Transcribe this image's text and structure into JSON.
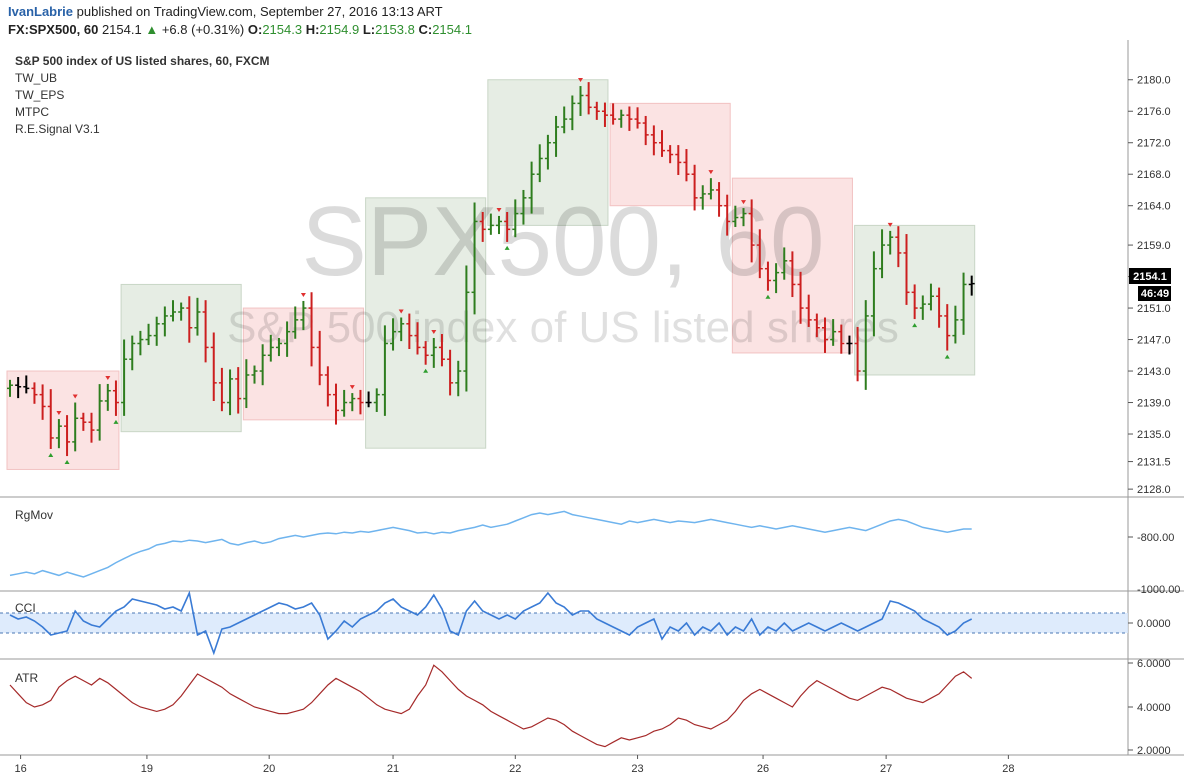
{
  "header": {
    "author": "IvanLabrie",
    "published": "published on TradingView.com, September 27, 2016 13:13 ART",
    "symbol": "FX:SPX500, 60",
    "last": "2154.1",
    "change": "+6.8 (+0.31%)",
    "o_label": "O:",
    "o": "2154.3",
    "h_label": "H:",
    "h": "2154.9",
    "l_label": "L:",
    "l": "2153.8",
    "c_label": "C:",
    "c": "2154.1"
  },
  "legend": {
    "main": "S&P 500 index of US listed shares, 60, FXCM",
    "items": [
      "TW_UB",
      "TW_EPS",
      "MTPC",
      "R.E.Signal V3.1"
    ]
  },
  "watermark": {
    "big": "SPX500, 60",
    "small": "S&P 500 index of US listed shares"
  },
  "price_axis": {
    "ticks": [
      "2180.0",
      "2176.0",
      "2172.0",
      "2168.0",
      "2164.0",
      "2159.0",
      "2155.0",
      "2151.0",
      "2147.0",
      "2143.0",
      "2139.0",
      "2135.0",
      "2131.5",
      "2128.0"
    ],
    "current_price": "2154.1",
    "countdown": "46:49"
  },
  "time_axis": {
    "labels": [
      "16",
      "19",
      "20",
      "21",
      "22",
      "23",
      "26",
      "27",
      "28"
    ]
  },
  "colors": {
    "up": "#2e7d1e",
    "down": "#cc1f1f",
    "neutral": "#000000",
    "zone_green": "#e6ede4",
    "zone_red": "#fbe3e3",
    "rgmov": "#6fb4ee",
    "cci": "#3a7bd5",
    "atr": "#a52a2a"
  },
  "indicators": {
    "rgmov": {
      "title": "RgMov",
      "ticks": [
        "-800.00",
        "-1000.00"
      ]
    },
    "cci": {
      "title": "CCI",
      "ticks": [
        "0.0000"
      ]
    },
    "atr": {
      "title": "ATR",
      "ticks": [
        "6.0000",
        "4.0000",
        "2.0000"
      ]
    }
  },
  "chart_data": {
    "type": "candlestick",
    "y_range": [
      2127,
      2182
    ],
    "close": [
      2141.2,
      2141.0,
      2140.8,
      2140.0,
      2138.5,
      2134.5,
      2136.0,
      2134.0,
      2137.0,
      2136.5,
      2135.5,
      2139.2,
      2140.5,
      2139.0,
      2144.5,
      2146.5,
      2147.0,
      2147.5,
      2149.0,
      2150.0,
      2150.5,
      2151.0,
      2148.5,
      2150.5,
      2146.0,
      2141.5,
      2139.0,
      2142.0,
      2139.5,
      2142.5,
      2143.0,
      2145.0,
      2146.0,
      2146.5,
      2148.0,
      2149.5,
      2151.0,
      2146.0,
      2142.5,
      2140.0,
      2138.0,
      2139.0,
      2139.5,
      2139.0,
      2139.0,
      2140.0,
      2146.5,
      2148.0,
      2149.0,
      2147.5,
      2146.0,
      2145.0,
      2146.0,
      2144.5,
      2141.5,
      2143.0,
      2153.0,
      2162.0,
      2161.0,
      2161.5,
      2162.0,
      2161.0,
      2163.0,
      2165.0,
      2168.0,
      2170.0,
      2172.0,
      2174.0,
      2175.0,
      2177.0,
      2178.0,
      2176.5,
      2176.0,
      2175.5,
      2175.0,
      2175.5,
      2175.0,
      2174.5,
      2173.0,
      2172.0,
      2171.0,
      2170.5,
      2169.5,
      2168.0,
      2165.0,
      2165.5,
      2166.0,
      2164.0,
      2162.0,
      2162.5,
      2163.0,
      2159.0,
      2156.0,
      2154.5,
      2155.5,
      2157.0,
      2154.0,
      2151.0,
      2149.5,
      2148.5,
      2147.0,
      2148.0,
      2146.5,
      2146.5,
      2143.0,
      2150.0,
      2156.0,
      2159.0,
      2160.0,
      2158.0,
      2153.0,
      2151.0,
      2151.5,
      2152.5,
      2150.0,
      2147.5,
      2149.5,
      2154.0,
      2154.1
    ],
    "zones": [
      {
        "from": 0,
        "to": 13,
        "top": 2143.0,
        "bottom": 2130.5,
        "kind": "red"
      },
      {
        "from": 14,
        "to": 28,
        "top": 2154.0,
        "bottom": 2135.3,
        "kind": "green"
      },
      {
        "from": 29,
        "to": 43,
        "top": 2151.0,
        "bottom": 2136.8,
        "kind": "red"
      },
      {
        "from": 44,
        "to": 58,
        "top": 2165.0,
        "bottom": 2133.2,
        "kind": "green"
      },
      {
        "from": 59,
        "to": 73,
        "top": 2180.0,
        "bottom": 2161.5,
        "kind": "green"
      },
      {
        "from": 74,
        "to": 88,
        "top": 2177.0,
        "bottom": 2164.0,
        "kind": "red"
      },
      {
        "from": 89,
        "to": 103,
        "top": 2167.5,
        "bottom": 2145.3,
        "kind": "red"
      },
      {
        "from": 104,
        "to": 118,
        "top": 2161.5,
        "bottom": 2142.5,
        "kind": "green"
      }
    ],
    "rgmov": [
      0.12,
      0.14,
      0.16,
      0.14,
      0.18,
      0.15,
      0.12,
      0.16,
      0.13,
      0.1,
      0.14,
      0.18,
      0.22,
      0.28,
      0.33,
      0.38,
      0.42,
      0.45,
      0.5,
      0.52,
      0.55,
      0.54,
      0.56,
      0.55,
      0.53,
      0.55,
      0.57,
      0.52,
      0.5,
      0.53,
      0.55,
      0.52,
      0.54,
      0.58,
      0.6,
      0.62,
      0.6,
      0.62,
      0.64,
      0.65,
      0.64,
      0.66,
      0.65,
      0.67,
      0.66,
      0.68,
      0.7,
      0.72,
      0.7,
      0.68,
      0.65,
      0.66,
      0.64,
      0.66,
      0.65,
      0.68,
      0.7,
      0.72,
      0.75,
      0.72,
      0.74,
      0.76,
      0.8,
      0.84,
      0.88,
      0.9,
      0.88,
      0.9,
      0.92,
      0.88,
      0.86,
      0.84,
      0.82,
      0.8,
      0.78,
      0.76,
      0.8,
      0.78,
      0.8,
      0.82,
      0.8,
      0.78,
      0.8,
      0.79,
      0.78,
      0.8,
      0.82,
      0.8,
      0.78,
      0.76,
      0.74,
      0.72,
      0.74,
      0.72,
      0.7,
      0.72,
      0.74,
      0.72,
      0.7,
      0.68,
      0.66,
      0.68,
      0.7,
      0.72,
      0.7,
      0.68,
      0.72,
      0.76,
      0.8,
      0.82,
      0.8,
      0.76,
      0.72,
      0.7,
      0.68,
      0.66,
      0.68,
      0.7,
      0.7
    ],
    "cci": [
      40,
      20,
      30,
      10,
      -20,
      -60,
      -50,
      -40,
      60,
      10,
      -10,
      -20,
      20,
      60,
      80,
      120,
      110,
      100,
      90,
      70,
      80,
      60,
      150,
      -60,
      -40,
      -150,
      -30,
      -20,
      0,
      20,
      40,
      60,
      80,
      100,
      90,
      70,
      80,
      100,
      40,
      -80,
      -40,
      10,
      -20,
      20,
      40,
      60,
      100,
      120,
      80,
      60,
      40,
      80,
      140,
      70,
      -40,
      -60,
      60,
      110,
      60,
      40,
      20,
      40,
      20,
      60,
      80,
      100,
      150,
      100,
      80,
      40,
      60,
      60,
      20,
      0,
      -20,
      -40,
      -60,
      -20,
      0,
      20,
      -80,
      -20,
      -40,
      0,
      -60,
      -20,
      -40,
      0,
      -60,
      -20,
      -40,
      20,
      -60,
      -20,
      -40,
      0,
      -40,
      -20,
      0,
      -20,
      -40,
      -20,
      0,
      -20,
      -40,
      -20,
      0,
      20,
      110,
      100,
      80,
      60,
      20,
      0,
      -20,
      -60,
      -40,
      0,
      20
    ],
    "atr": [
      5.0,
      4.6,
      4.2,
      4.0,
      4.1,
      4.3,
      4.9,
      5.2,
      5.4,
      5.2,
      5.0,
      5.3,
      5.1,
      4.8,
      4.5,
      4.2,
      4.0,
      3.9,
      3.8,
      3.9,
      4.1,
      4.5,
      5.0,
      5.5,
      5.3,
      5.1,
      4.9,
      4.6,
      4.4,
      4.2,
      4.0,
      3.9,
      3.8,
      3.7,
      3.7,
      3.8,
      3.9,
      4.2,
      4.6,
      5.0,
      5.3,
      5.1,
      4.9,
      4.7,
      4.4,
      4.1,
      3.9,
      3.8,
      3.7,
      3.9,
      4.5,
      5.0,
      5.9,
      5.6,
      5.2,
      4.8,
      4.5,
      4.3,
      4.1,
      3.8,
      3.6,
      3.4,
      3.2,
      3.0,
      3.1,
      3.3,
      3.5,
      3.4,
      3.2,
      2.9,
      2.7,
      2.5,
      2.3,
      2.2,
      2.4,
      2.6,
      2.5,
      2.6,
      2.7,
      2.9,
      3.0,
      3.2,
      3.5,
      3.4,
      3.2,
      3.1,
      3.0,
      3.2,
      3.4,
      3.8,
      4.3,
      4.6,
      4.8,
      4.6,
      4.4,
      4.2,
      4.0,
      4.5,
      4.9,
      5.2,
      5.0,
      4.8,
      4.6,
      4.4,
      4.3,
      4.5,
      4.7,
      4.9,
      4.8,
      4.6,
      4.4,
      4.3,
      4.2,
      4.4,
      4.6,
      5.0,
      5.4,
      5.6,
      5.3
    ]
  }
}
